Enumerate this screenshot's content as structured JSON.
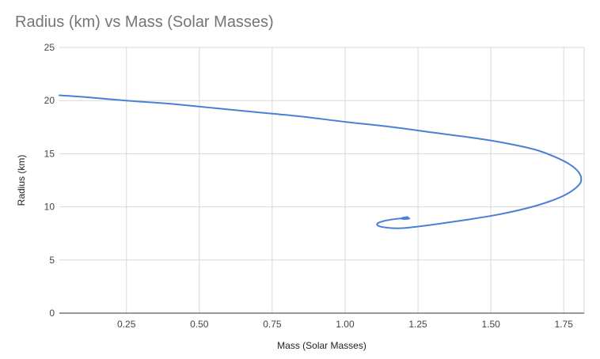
{
  "chart_data": {
    "type": "scatter",
    "title": "Radius (km) vs Mass (Solar Masses)",
    "xlabel": "Mass (Solar Masses)",
    "ylabel": "Radius (km)",
    "xlim": [
      0.02,
      1.82
    ],
    "ylim": [
      0,
      25
    ],
    "x_ticks": [
      "0.25",
      "0.50",
      "0.75",
      "1.00",
      "1.25",
      "1.50",
      "1.75"
    ],
    "x_tick_values": [
      0.25,
      0.5,
      0.75,
      1.0,
      1.25,
      1.5,
      1.75
    ],
    "y_ticks": [
      "0",
      "5",
      "10",
      "15",
      "20",
      "25"
    ],
    "y_tick_values": [
      0,
      5,
      10,
      15,
      20,
      25
    ],
    "grid": true,
    "legend": "none",
    "colors": {
      "series": "#4a7fd6",
      "grid": "#d9d9d9",
      "title": "#757575"
    },
    "series": [
      {
        "connected": true,
        "points": [
          [
            0.02,
            20.5
          ],
          [
            0.1,
            20.35
          ],
          [
            0.25,
            20.0
          ],
          [
            0.4,
            19.7
          ],
          [
            0.55,
            19.3
          ],
          [
            0.7,
            18.9
          ],
          [
            0.85,
            18.5
          ],
          [
            1.0,
            18.0
          ],
          [
            1.15,
            17.55
          ],
          [
            1.3,
            17.0
          ],
          [
            1.45,
            16.45
          ],
          [
            1.55,
            16.0
          ],
          [
            1.65,
            15.4
          ],
          [
            1.72,
            14.7
          ],
          [
            1.77,
            14.0
          ],
          [
            1.8,
            13.3
          ],
          [
            1.81,
            12.6
          ],
          [
            1.8,
            12.0
          ],
          [
            1.76,
            11.2
          ],
          [
            1.7,
            10.5
          ],
          [
            1.62,
            9.85
          ],
          [
            1.52,
            9.25
          ],
          [
            1.42,
            8.8
          ],
          [
            1.32,
            8.4
          ],
          [
            1.25,
            8.15
          ],
          [
            1.2,
            8.0
          ],
          [
            1.16,
            8.0
          ],
          [
            1.12,
            8.15
          ],
          [
            1.11,
            8.4
          ],
          [
            1.13,
            8.65
          ],
          [
            1.17,
            8.85
          ],
          [
            1.21,
            8.95
          ],
          [
            1.22,
            8.9
          ],
          [
            1.2,
            8.85
          ],
          [
            1.195,
            8.95
          ],
          [
            1.215,
            9.05
          ]
        ]
      }
    ]
  }
}
